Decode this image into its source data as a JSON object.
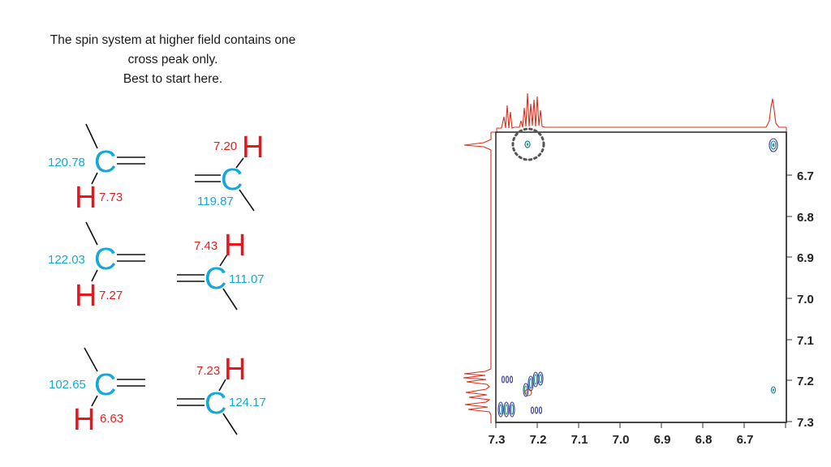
{
  "caption": {
    "line1": "The spin system at higher field contains one",
    "line2": "cross peak only.",
    "line3": "Best to start here."
  },
  "fragments": [
    {
      "c_label": "C",
      "h_label": "H",
      "c_shift": "120.78",
      "h_shift": "7.73"
    },
    {
      "c_label": "C",
      "h_label": "H",
      "c_shift": "119.87",
      "h_shift": "7.20"
    },
    {
      "c_label": "C",
      "h_label": "H",
      "c_shift": "122.03",
      "h_shift": "7.27"
    },
    {
      "c_label": "C",
      "h_label": "H",
      "c_shift": "111.07",
      "h_shift": "7.43"
    },
    {
      "c_label": "C",
      "h_label": "H",
      "c_shift": "102.65",
      "h_shift": "6.63"
    },
    {
      "c_label": "C",
      "h_label": "H",
      "c_shift": "124.17",
      "h_shift": "7.23"
    }
  ],
  "spectrum": {
    "x_ticks": [
      "7.3",
      "7.2",
      "7.1",
      "7.0",
      "6.9",
      "6.8",
      "6.7"
    ],
    "y_ticks": [
      "6.7",
      "6.8",
      "6.9",
      "7.0",
      "7.1",
      "7.2",
      "7.3"
    ],
    "trace_color": "#d9301c",
    "highlight_circle_color": "#555555"
  }
}
